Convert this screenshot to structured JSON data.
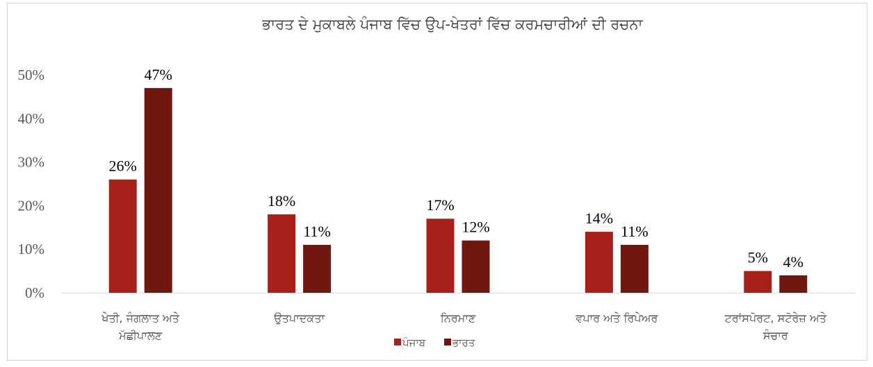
{
  "chart_data": {
    "type": "bar",
    "title": "ਭਾਰਤ ਦੇ ਮੁਕਾਬਲੇ ਪੰਜਾਬ ਵਿੱਚ ਉਪ-ਖੇਤਰਾਂ ਵਿੱਚ ਕਰਮਚਾਰੀਆਂ ਦੀ ਰਚਨਾ",
    "categories": [
      [
        "ਖੇਤੀ, ਜੰਗਲਾਤ ਅਤੇ",
        "ਮੱਛੀਪਾਲਣ"
      ],
      [
        "ਉਤਪਾਦਕਤਾ"
      ],
      [
        "ਨਿਰਮਾਣ"
      ],
      [
        "ਵਪਾਰ ਅਤੇ ਰਿਪੇਅਰ"
      ],
      [
        "ਟਰਾਂਸਪੋਰਟ, ਸਟੋਰੇਜ਼ ਅਤੇ",
        "ਸੰਚਾਰ"
      ]
    ],
    "series": [
      {
        "name": "ਪੰਜਾਬ",
        "color": "#a8201a",
        "values": [
          26,
          18,
          17,
          14,
          5
        ],
        "labels": [
          "26%",
          "18%",
          "17%",
          "14%",
          "5%"
        ]
      },
      {
        "name": "ਭਾਰਤ",
        "color": "#701710",
        "values": [
          47,
          11,
          12,
          11,
          4
        ],
        "labels": [
          "47%",
          "11%",
          "12%",
          "11%",
          "4%"
        ]
      }
    ],
    "yticks": [
      "0%",
      "10%",
      "20%",
      "30%",
      "40%",
      "50%"
    ],
    "ylim": [
      0,
      50
    ],
    "grid": false,
    "legend": "bottom-center"
  }
}
